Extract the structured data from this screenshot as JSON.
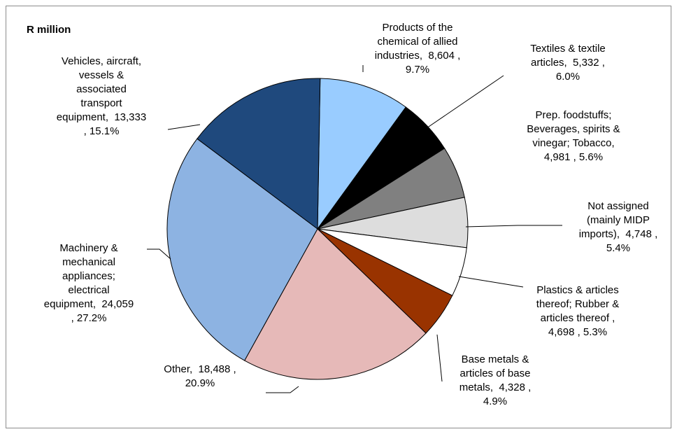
{
  "chart_data": {
    "type": "pie",
    "title": "R million",
    "series": [
      {
        "name": "",
        "slices": [
          {
            "label": "Products of the chemical of allied industries",
            "value": 8604,
            "percent": "9.7%",
            "display": "Products of the\nchemical of allied\nindustries,  8,604 ,\n9.7%",
            "color": "#99CCFF"
          },
          {
            "label": "Textiles & textile articles",
            "value": 5332,
            "percent": "6.0%",
            "display": "Textiles & textile\narticles,  5,332 ,\n6.0%",
            "color": "#000000"
          },
          {
            "label": "Prep. foodstuffs; Beverages, spirits & vinegar; Tobacco",
            "value": 4981,
            "percent": "5.6%",
            "display": "Prep. foodstuffs;\nBeverages, spirits &\nvinegar; Tobacco,\n4,981 , 5.6%",
            "color": "#808080"
          },
          {
            "label": "Not assigned (mainly MIDP imports)",
            "value": 4748,
            "percent": "5.4%",
            "display": "Not assigned\n(mainly MIDP\nimports),  4,748 ,\n5.4%",
            "color": "#DDDDDD"
          },
          {
            "label": "Plastics & articles thereof; Rubber & articles thereof",
            "value": 4698,
            "percent": "5.3%",
            "display": "Plastics & articles\nthereof; Rubber &\narticles thereof ,\n4,698 , 5.3%",
            "color": "#FFFFFF"
          },
          {
            "label": "Base metals & articles of base metals",
            "value": 4328,
            "percent": "4.9%",
            "display": "Base metals &\narticles of base\nmetals,  4,328 ,\n4.9%",
            "color": "#993300"
          },
          {
            "label": "Other",
            "value": 18488,
            "percent": "20.9%",
            "display": "Other,  18,488 ,\n20.9%",
            "color": "#E6B9B8"
          },
          {
            "label": "Machinery & mechanical appliances; electrical equipment",
            "value": 24059,
            "percent": "27.2%",
            "display": "Machinery &\nmechanical\nappliances;\nelectrical\nequipment,  24,059\n, 27.2%",
            "color": "#8DB3E2"
          },
          {
            "label": "Vehicles, aircraft, vessels & associated transport equipment",
            "value": 13333,
            "percent": "15.1%",
            "display": "Vehicles, aircraft,\nvessels &\nassociated\ntransport\nequipment,  13,333\n, 15.1%",
            "color": "#1F497D"
          }
        ]
      }
    ]
  }
}
